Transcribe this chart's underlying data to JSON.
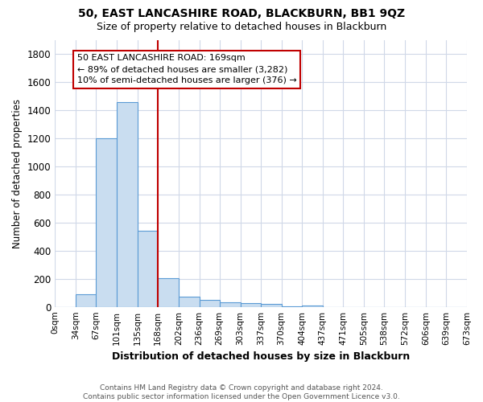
{
  "title1": "50, EAST LANCASHIRE ROAD, BLACKBURN, BB1 9QZ",
  "title2": "Size of property relative to detached houses in Blackburn",
  "xlabel": "Distribution of detached houses by size in Blackburn",
  "ylabel": "Number of detached properties",
  "footnote": "Contains HM Land Registry data © Crown copyright and database right 2024.\nContains public sector information licensed under the Open Government Licence v3.0.",
  "bins": [
    0,
    34,
    67,
    101,
    135,
    168,
    202,
    236,
    269,
    303,
    337,
    370,
    404,
    437,
    471,
    505,
    538,
    572,
    606,
    639,
    673
  ],
  "bin_labels": [
    "0sqm",
    "34sqm",
    "67sqm",
    "101sqm",
    "135sqm",
    "168sqm",
    "202sqm",
    "236sqm",
    "269sqm",
    "303sqm",
    "337sqm",
    "370sqm",
    "404sqm",
    "437sqm",
    "471sqm",
    "505sqm",
    "538sqm",
    "572sqm",
    "606sqm",
    "639sqm",
    "673sqm"
  ],
  "bar_heights": [
    0,
    90,
    1200,
    1460,
    540,
    205,
    70,
    50,
    35,
    25,
    20,
    5,
    10,
    0,
    0,
    0,
    0,
    0,
    0,
    0
  ],
  "bar_color": "#c9ddf0",
  "bar_edge_color": "#5b9bd5",
  "vline_x": 168,
  "vline_color": "#c00000",
  "ylim": [
    0,
    1900
  ],
  "yticks": [
    0,
    200,
    400,
    600,
    800,
    1000,
    1200,
    1400,
    1600,
    1800
  ],
  "annotation_text": "50 EAST LANCASHIRE ROAD: 169sqm\n← 89% of detached houses are smaller (3,282)\n10% of semi-detached houses are larger (376) →",
  "annotation_box_color": "white",
  "annotation_box_edge": "#c00000",
  "bg_color": "white",
  "grid_color": "#d0d8e8"
}
